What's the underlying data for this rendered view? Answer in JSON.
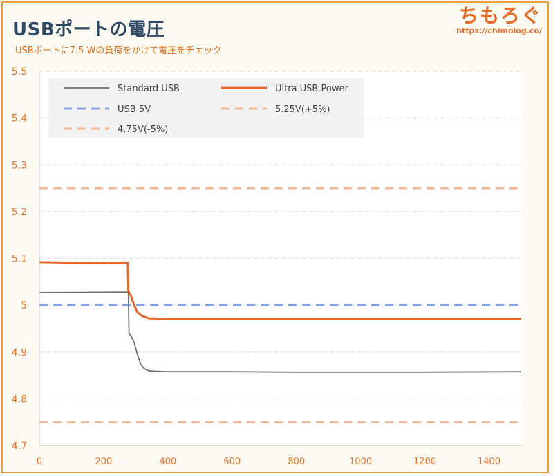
{
  "header": {
    "title": "USBポートの電圧",
    "subtitle": "USBポートに7.5 Wの負荷をかけて電圧をチェック"
  },
  "brand": {
    "name": "ちもろぐ",
    "url": "https://chimolog.co/"
  },
  "chart_data": {
    "type": "line",
    "title": "USBポートの電圧",
    "subtitle": "USBポートに7.5 Wの負荷をかけて電圧をチェック",
    "xlabel": "",
    "ylabel": "",
    "xlim": [
      0,
      1500
    ],
    "ylim": [
      4.7,
      5.5
    ],
    "xticks": [
      0,
      200,
      400,
      600,
      800,
      1000,
      1200,
      1400
    ],
    "yticks": [
      "4.7",
      "4.8",
      "4.9",
      "5",
      "5.1",
      "5.2",
      "5.3",
      "5.4",
      "5.5"
    ],
    "grid": "horizontal dashed",
    "legend_position": "top-left",
    "series": [
      {
        "name": "Standard USB",
        "color": "#707070",
        "dashed": false,
        "points": [
          [
            0,
            5.027
          ],
          [
            270,
            5.028
          ],
          [
            277,
            5.028
          ],
          [
            279,
            4.94
          ],
          [
            285,
            4.935
          ],
          [
            295,
            4.92
          ],
          [
            305,
            4.895
          ],
          [
            315,
            4.875
          ],
          [
            325,
            4.865
          ],
          [
            340,
            4.86
          ],
          [
            360,
            4.859
          ],
          [
            400,
            4.858
          ],
          [
            600,
            4.858
          ],
          [
            800,
            4.857
          ],
          [
            1000,
            4.857
          ],
          [
            1200,
            4.857
          ],
          [
            1500,
            4.858
          ]
        ]
      },
      {
        "name": "Ultra USB Power",
        "color": "#e8672a",
        "dashed": false,
        "points": [
          [
            0,
            5.092
          ],
          [
            100,
            5.091
          ],
          [
            200,
            5.091
          ],
          [
            275,
            5.091
          ],
          [
            277,
            5.03
          ],
          [
            285,
            5.02
          ],
          [
            295,
            5.0
          ],
          [
            305,
            4.985
          ],
          [
            320,
            4.977
          ],
          [
            340,
            4.972
          ],
          [
            400,
            4.971
          ],
          [
            600,
            4.971
          ],
          [
            800,
            4.971
          ],
          [
            1000,
            4.971
          ],
          [
            1200,
            4.971
          ],
          [
            1500,
            4.971
          ]
        ]
      },
      {
        "name": "USB 5V",
        "color": "#8aa0e6",
        "dashed": true,
        "points": [
          [
            0,
            5.0
          ],
          [
            1500,
            5.0
          ]
        ]
      },
      {
        "name": "5.25V(+5%)",
        "color": "#f5b895",
        "dashed": true,
        "points": [
          [
            0,
            5.25
          ],
          [
            1500,
            5.25
          ]
        ]
      },
      {
        "name": "4.75V(-5%)",
        "color": "#f5b895",
        "dashed": true,
        "points": [
          [
            0,
            4.75
          ],
          [
            1500,
            4.75
          ]
        ]
      }
    ]
  }
}
